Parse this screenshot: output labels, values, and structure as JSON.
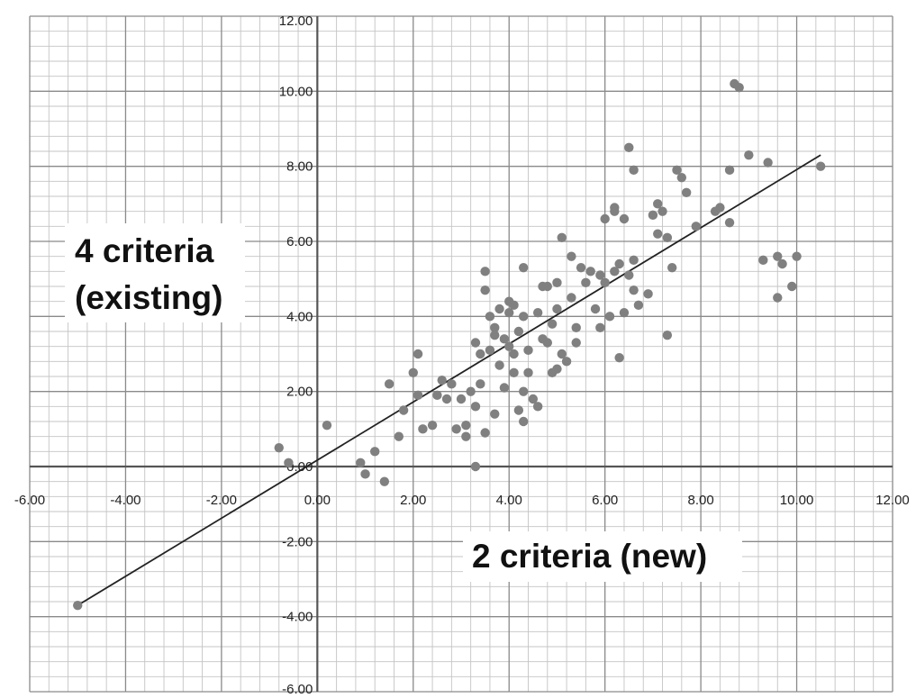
{
  "chart_data": {
    "type": "scatter",
    "title": "",
    "xlabel": "2 criteria (new)",
    "ylabel_lines": [
      "4 criteria",
      "(existing)"
    ],
    "xlim": [
      -6,
      12
    ],
    "ylim": [
      -6,
      12
    ],
    "x_ticks": [
      "-6.00",
      "-4.00",
      "-2.00",
      "0.00",
      "2.00",
      "4.00",
      "6.00",
      "8.00",
      "10.00",
      "12.00"
    ],
    "y_ticks": [
      "-6.00",
      "-4.00",
      "-2.00",
      "0.00",
      "2.00",
      "4.00",
      "6.00",
      "8.00",
      "10.00",
      "12.00"
    ],
    "grid": true,
    "minor_grid_step": 0.4,
    "marker_color": "#808080",
    "line_color": "#222222",
    "trendline": {
      "x": [
        -5.0,
        10.5
      ],
      "y": [
        -3.7,
        8.3
      ]
    },
    "points": [
      [
        -5.0,
        -3.7
      ],
      [
        -0.8,
        0.5
      ],
      [
        -0.6,
        0.1
      ],
      [
        0.2,
        1.1
      ],
      [
        0.9,
        0.1
      ],
      [
        1.0,
        -0.2
      ],
      [
        1.2,
        0.4
      ],
      [
        1.4,
        -0.4
      ],
      [
        1.5,
        2.2
      ],
      [
        1.7,
        0.8
      ],
      [
        1.8,
        1.5
      ],
      [
        2.0,
        2.5
      ],
      [
        2.1,
        3.0
      ],
      [
        2.1,
        1.9
      ],
      [
        2.2,
        1.0
      ],
      [
        2.4,
        1.1
      ],
      [
        2.5,
        1.9
      ],
      [
        2.6,
        2.3
      ],
      [
        2.7,
        1.8
      ],
      [
        2.8,
        2.2
      ],
      [
        2.9,
        1.0
      ],
      [
        3.0,
        1.8
      ],
      [
        3.1,
        0.8
      ],
      [
        3.1,
        1.1
      ],
      [
        3.2,
        2.0
      ],
      [
        3.3,
        1.6
      ],
      [
        3.3,
        3.3
      ],
      [
        3.3,
        0.0
      ],
      [
        3.4,
        2.2
      ],
      [
        3.4,
        3.0
      ],
      [
        3.5,
        0.9
      ],
      [
        3.5,
        4.7
      ],
      [
        3.5,
        5.2
      ],
      [
        3.6,
        3.1
      ],
      [
        3.6,
        4.0
      ],
      [
        3.7,
        3.7
      ],
      [
        3.7,
        1.4
      ],
      [
        3.7,
        3.5
      ],
      [
        3.8,
        4.2
      ],
      [
        3.8,
        2.7
      ],
      [
        3.9,
        2.1
      ],
      [
        3.9,
        3.4
      ],
      [
        4.0,
        4.4
      ],
      [
        4.0,
        3.2
      ],
      [
        4.0,
        4.1
      ],
      [
        4.1,
        2.5
      ],
      [
        4.1,
        4.3
      ],
      [
        4.1,
        3.0
      ],
      [
        4.2,
        1.5
      ],
      [
        4.2,
        3.6
      ],
      [
        4.3,
        5.3
      ],
      [
        4.3,
        4.0
      ],
      [
        4.3,
        2.0
      ],
      [
        4.3,
        1.2
      ],
      [
        4.4,
        3.1
      ],
      [
        4.4,
        2.5
      ],
      [
        4.5,
        1.8
      ],
      [
        4.6,
        1.6
      ],
      [
        4.6,
        4.1
      ],
      [
        4.7,
        4.8
      ],
      [
        4.7,
        3.4
      ],
      [
        4.8,
        3.3
      ],
      [
        4.8,
        4.8
      ],
      [
        4.9,
        2.5
      ],
      [
        4.9,
        3.8
      ],
      [
        5.0,
        4.2
      ],
      [
        5.0,
        2.6
      ],
      [
        5.0,
        4.9
      ],
      [
        5.1,
        6.1
      ],
      [
        5.1,
        3.0
      ],
      [
        5.2,
        2.8
      ],
      [
        5.3,
        4.5
      ],
      [
        5.3,
        5.6
      ],
      [
        5.4,
        3.3
      ],
      [
        5.4,
        3.7
      ],
      [
        5.5,
        5.3
      ],
      [
        5.6,
        4.9
      ],
      [
        5.7,
        5.2
      ],
      [
        5.8,
        4.2
      ],
      [
        5.9,
        3.7
      ],
      [
        5.9,
        5.1
      ],
      [
        6.0,
        4.9
      ],
      [
        6.0,
        6.6
      ],
      [
        6.1,
        4.0
      ],
      [
        6.2,
        5.2
      ],
      [
        6.2,
        6.8
      ],
      [
        6.2,
        6.9
      ],
      [
        6.3,
        2.9
      ],
      [
        6.3,
        5.4
      ],
      [
        6.4,
        6.6
      ],
      [
        6.4,
        4.1
      ],
      [
        6.5,
        8.5
      ],
      [
        6.5,
        5.1
      ],
      [
        6.6,
        4.7
      ],
      [
        6.6,
        5.5
      ],
      [
        6.6,
        7.9
      ],
      [
        6.7,
        4.3
      ],
      [
        6.9,
        4.6
      ],
      [
        7.0,
        6.7
      ],
      [
        7.1,
        7.0
      ],
      [
        7.1,
        6.2
      ],
      [
        7.2,
        6.8
      ],
      [
        7.3,
        6.1
      ],
      [
        7.3,
        3.5
      ],
      [
        7.4,
        5.3
      ],
      [
        7.5,
        7.9
      ],
      [
        7.6,
        7.7
      ],
      [
        7.7,
        7.3
      ],
      [
        7.9,
        6.4
      ],
      [
        8.3,
        6.8
      ],
      [
        8.4,
        6.9
      ],
      [
        8.6,
        6.5
      ],
      [
        8.6,
        7.9
      ],
      [
        8.7,
        10.2
      ],
      [
        8.8,
        10.1
      ],
      [
        9.0,
        8.3
      ],
      [
        9.3,
        5.5
      ],
      [
        9.4,
        8.1
      ],
      [
        9.6,
        5.6
      ],
      [
        9.6,
        4.5
      ],
      [
        9.7,
        5.4
      ],
      [
        9.9,
        4.8
      ],
      [
        10.0,
        5.6
      ],
      [
        10.5,
        8.0
      ]
    ]
  }
}
